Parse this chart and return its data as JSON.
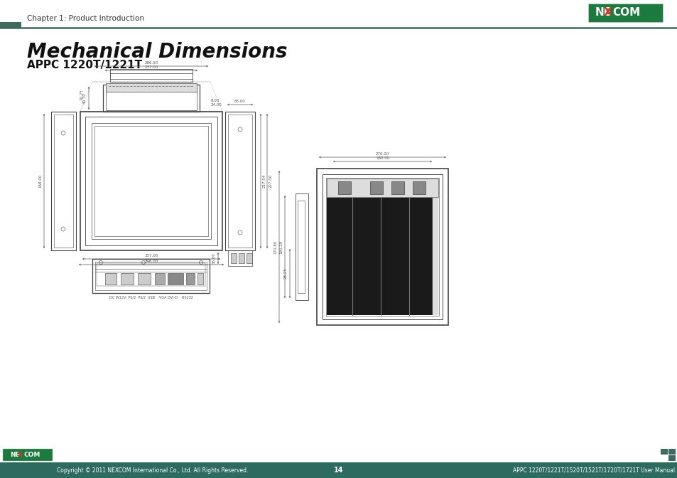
{
  "title": "Mechanical Dimensions",
  "subtitle": "APPC 1220T/1221T",
  "header_text": "Chapter 1: Product Introduction",
  "footer_left": "Copyright © 2011 NEXCOM International Co., Ltd. All Rights Reserved.",
  "footer_center": "14",
  "footer_right": "APPC 1220T/1221T/1520T/1521T/1720T/1721T User Manual",
  "bg_color": "#ffffff",
  "header_line_color": "#3d6b5e",
  "header_rect_color": "#3d6b5e",
  "drawing_line_color": "#444444",
  "dim_color": "#555555"
}
